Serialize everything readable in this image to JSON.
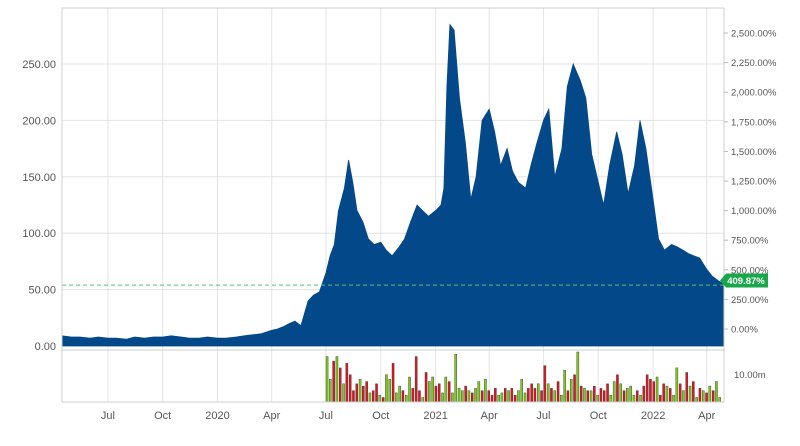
{
  "chart_data": {
    "type": "area",
    "series_color": "#03498a",
    "x_tick_labels": [
      "Jul",
      "Oct",
      "2020",
      "Apr",
      "Jul",
      "Oct",
      "2021",
      "Apr",
      "Jul",
      "Oct",
      "2022",
      "Apr"
    ],
    "x_tick_dates": [
      "2019-07",
      "2019-10",
      "2020-01",
      "2020-04",
      "2020-07",
      "2020-10",
      "2021-01",
      "2021-04",
      "2021-07",
      "2021-10",
      "2022-01",
      "2022-04"
    ],
    "x_range": [
      "2019-04-15",
      "2022-04-30"
    ],
    "price_axis": {
      "ticks": [
        0,
        50,
        100,
        150,
        200,
        250
      ],
      "tick_labels": [
        "0.00",
        "50.00",
        "100.00",
        "150.00",
        "200.00",
        "250.00"
      ],
      "ylim": [
        0,
        295
      ]
    },
    "percent_axis": {
      "ticks": [
        0,
        250,
        500,
        750,
        1000,
        1250,
        1500,
        1750,
        2000,
        2250,
        2500
      ],
      "tick_labels": [
        "0.00%",
        "250.00%",
        "500.00%",
        "750.00%",
        "1,000.00%",
        "1,250.00%",
        "1,500.00%",
        "1,750.00%",
        "2,000.00%",
        "2,250.00%",
        "2,500.00%"
      ]
    },
    "current_change": "409.87%",
    "current_change_value": 409.87,
    "current_change_color": "#1aa64a",
    "reference_line_value": 54,
    "price_series": {
      "x": [
        "2019-04-15",
        "2019-05-01",
        "2019-05-15",
        "2019-06-01",
        "2019-06-15",
        "2019-07-01",
        "2019-07-15",
        "2019-08-01",
        "2019-08-15",
        "2019-09-01",
        "2019-09-15",
        "2019-10-01",
        "2019-10-15",
        "2019-11-01",
        "2019-11-15",
        "2019-12-01",
        "2019-12-15",
        "2020-01-01",
        "2020-01-15",
        "2020-02-01",
        "2020-02-15",
        "2020-03-01",
        "2020-03-15",
        "2020-04-01",
        "2020-04-10",
        "2020-04-20",
        "2020-05-01",
        "2020-05-10",
        "2020-05-20",
        "2020-06-01",
        "2020-06-10",
        "2020-06-20",
        "2020-07-01",
        "2020-07-08",
        "2020-07-15",
        "2020-07-22",
        "2020-08-01",
        "2020-08-08",
        "2020-08-15",
        "2020-08-22",
        "2020-09-01",
        "2020-09-10",
        "2020-09-20",
        "2020-10-01",
        "2020-10-10",
        "2020-10-20",
        "2020-11-01",
        "2020-11-10",
        "2020-11-20",
        "2020-12-01",
        "2020-12-10",
        "2020-12-20",
        "2021-01-01",
        "2021-01-10",
        "2021-01-15",
        "2021-01-20",
        "2021-01-25",
        "2021-02-01",
        "2021-02-10",
        "2021-02-20",
        "2021-03-01",
        "2021-03-10",
        "2021-03-20",
        "2021-04-01",
        "2021-04-10",
        "2021-04-20",
        "2021-05-01",
        "2021-05-10",
        "2021-05-20",
        "2021-06-01",
        "2021-06-10",
        "2021-06-20",
        "2021-07-01",
        "2021-07-10",
        "2021-07-20",
        "2021-08-01",
        "2021-08-10",
        "2021-08-20",
        "2021-09-01",
        "2021-09-10",
        "2021-09-20",
        "2021-10-01",
        "2021-10-10",
        "2021-10-20",
        "2021-11-01",
        "2021-11-10",
        "2021-11-20",
        "2021-12-01",
        "2021-12-10",
        "2021-12-20",
        "2022-01-01",
        "2022-01-10",
        "2022-01-20",
        "2022-02-01",
        "2022-02-10",
        "2022-02-20",
        "2022-03-01",
        "2022-03-10",
        "2022-03-20",
        "2022-04-01",
        "2022-04-10",
        "2022-04-20",
        "2022-04-30"
      ],
      "y": [
        9,
        8,
        8,
        7,
        8,
        7,
        7,
        6,
        8,
        7,
        8,
        8,
        9,
        8,
        7,
        7,
        8,
        7,
        7,
        8,
        9,
        10,
        11,
        14,
        15,
        17,
        20,
        22,
        18,
        40,
        45,
        48,
        65,
        80,
        90,
        120,
        140,
        165,
        145,
        120,
        110,
        95,
        90,
        92,
        85,
        80,
        88,
        95,
        110,
        125,
        120,
        115,
        120,
        125,
        140,
        230,
        285,
        280,
        220,
        180,
        130,
        150,
        200,
        210,
        190,
        160,
        175,
        155,
        145,
        140,
        160,
        180,
        200,
        210,
        150,
        175,
        230,
        250,
        235,
        220,
        170,
        145,
        125,
        160,
        190,
        170,
        135,
        160,
        200,
        175,
        130,
        95,
        85,
        90,
        88,
        85,
        82,
        80,
        78,
        68,
        62,
        58,
        55
      ]
    },
    "volume_axis": {
      "tick_label": "10.00m",
      "tick_value": 10
    },
    "volume_series": {
      "up_color": "#7ccd12",
      "down_color": "#e0141e",
      "values": [
        20,
        10,
        18,
        20,
        15,
        8,
        17,
        12,
        5,
        8,
        10,
        7,
        9,
        4,
        5,
        8,
        3,
        2,
        12,
        10,
        17,
        4,
        7,
        5,
        3,
        11,
        6,
        20,
        5,
        2,
        13,
        9,
        11,
        7,
        8,
        4,
        11,
        9,
        4,
        21,
        6,
        5,
        7,
        5,
        4,
        6,
        9,
        5,
        10,
        5,
        3,
        6,
        3,
        4,
        6,
        5,
        6,
        3,
        5,
        10,
        4,
        6,
        8,
        6,
        8,
        5,
        16,
        8,
        6,
        5,
        9,
        3,
        14,
        5,
        10,
        12,
        22,
        7,
        6,
        5,
        5,
        7,
        3,
        6,
        5,
        8,
        3,
        9,
        12,
        8,
        5,
        6,
        7,
        3,
        5,
        3,
        7,
        12,
        10,
        9,
        11,
        3,
        8,
        7,
        6,
        3,
        15,
        8,
        5,
        13,
        7,
        9,
        2,
        6,
        5,
        4,
        7,
        5,
        9,
        2
      ],
      "colors": [
        "up",
        "up",
        "down",
        "up",
        "down",
        "up",
        "down",
        "down",
        "down",
        "down",
        "up",
        "down",
        "down",
        "up",
        "down",
        "down",
        "up",
        "down",
        "up",
        "up",
        "down",
        "up",
        "up",
        "down",
        "up",
        "up",
        "down",
        "down",
        "down",
        "up",
        "down",
        "up",
        "up",
        "down",
        "down",
        "up",
        "up",
        "down",
        "up",
        "up",
        "up",
        "up",
        "down",
        "up",
        "down",
        "up",
        "up",
        "down",
        "up",
        "down",
        "down",
        "down",
        "up",
        "up",
        "down",
        "up",
        "down",
        "down",
        "up",
        "up",
        "up",
        "down",
        "down",
        "down",
        "up",
        "down",
        "down",
        "up",
        "down",
        "up",
        "down",
        "up",
        "up",
        "down",
        "up",
        "down",
        "up",
        "down",
        "up",
        "down",
        "up",
        "down",
        "up",
        "down",
        "down",
        "down",
        "up",
        "up",
        "down",
        "up",
        "down",
        "up",
        "up",
        "up",
        "down",
        "up",
        "down",
        "down",
        "down",
        "down",
        "up",
        "down",
        "down",
        "up",
        "down",
        "up",
        "up",
        "down",
        "up",
        "down",
        "up",
        "down",
        "up",
        "down",
        "up",
        "down",
        "up",
        "down",
        "up",
        "up"
      ]
    }
  }
}
